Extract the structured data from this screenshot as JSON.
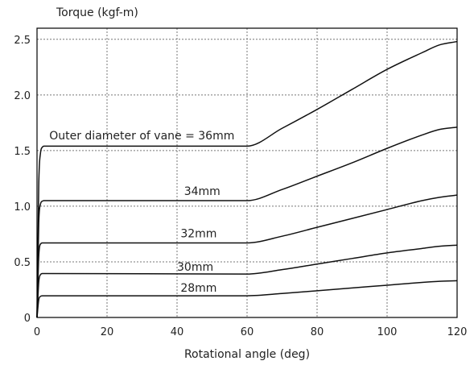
{
  "chart_data": {
    "type": "line",
    "title": "",
    "xlabel": "Rotational angle (deg)",
    "ylabel": "Torque (kgf-m)",
    "xlim": [
      0,
      120
    ],
    "ylim": [
      0,
      2.6
    ],
    "x_ticks": [
      0,
      20,
      40,
      60,
      80,
      100,
      120
    ],
    "y_ticks": [
      0,
      0.5,
      1.0,
      1.5,
      2.0,
      2.5
    ],
    "y_tick_labels": [
      "0",
      "0.5",
      "1.0",
      "1.5",
      "2.0",
      "2.5"
    ],
    "grid": true,
    "legend": "none",
    "series": [
      {
        "label": "Outer diameter of vane = 36mm",
        "label_at": [
          3.5,
          1.6
        ],
        "x": [
          0,
          0.5,
          1,
          1.5,
          2,
          60,
          70,
          80,
          90,
          100,
          110,
          115,
          120
        ],
        "y": [
          0,
          1.2,
          1.48,
          1.53,
          1.54,
          1.54,
          1.7,
          1.87,
          2.05,
          2.23,
          2.38,
          2.45,
          2.48
        ]
      },
      {
        "label": "34mm",
        "label_at": [
          42,
          1.1
        ],
        "x": [
          0,
          0.5,
          1,
          1.5,
          2,
          60,
          70,
          80,
          90,
          100,
          110,
          115,
          120
        ],
        "y": [
          0,
          0.85,
          1.02,
          1.045,
          1.05,
          1.05,
          1.15,
          1.27,
          1.39,
          1.52,
          1.64,
          1.69,
          1.71
        ]
      },
      {
        "label": "32mm",
        "label_at": [
          41,
          0.72
        ],
        "x": [
          0,
          0.5,
          1,
          1.5,
          2,
          60,
          70,
          80,
          90,
          100,
          110,
          115,
          120
        ],
        "y": [
          0,
          0.55,
          0.66,
          0.67,
          0.67,
          0.67,
          0.73,
          0.81,
          0.89,
          0.97,
          1.05,
          1.08,
          1.1
        ]
      },
      {
        "label": "30mm",
        "label_at": [
          40,
          0.42
        ],
        "x": [
          0,
          0.5,
          1,
          1.5,
          2,
          60,
          70,
          80,
          90,
          100,
          110,
          115,
          120
        ],
        "y": [
          0,
          0.32,
          0.385,
          0.395,
          0.395,
          0.39,
          0.43,
          0.48,
          0.53,
          0.58,
          0.62,
          0.64,
          0.65
        ]
      },
      {
        "label": "28mm",
        "label_at": [
          41,
          0.23
        ],
        "x": [
          0,
          0.5,
          1,
          1.5,
          2,
          60,
          70,
          80,
          90,
          100,
          110,
          115,
          120
        ],
        "y": [
          0,
          0.16,
          0.19,
          0.195,
          0.195,
          0.195,
          0.215,
          0.24,
          0.265,
          0.29,
          0.315,
          0.325,
          0.33
        ]
      }
    ]
  }
}
